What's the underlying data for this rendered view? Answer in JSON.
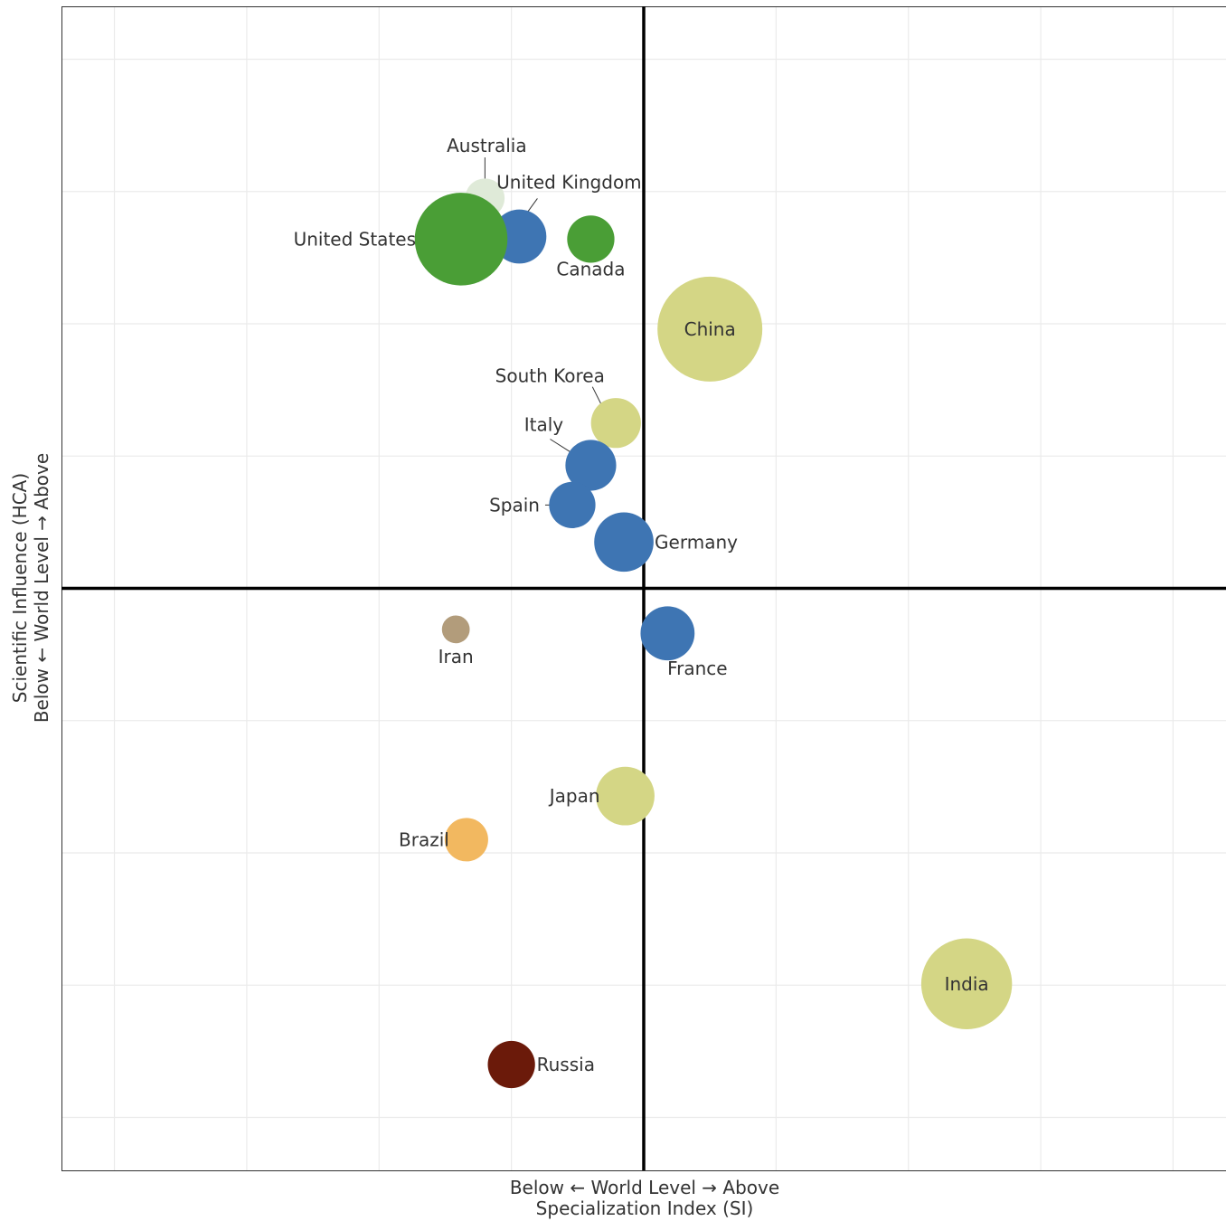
{
  "chart_data": {
    "type": "scatter",
    "subtype": "bubble",
    "xlabel": [
      "Below ← World Level → Above",
      "Specialization Index (SI)"
    ],
    "ylabel": [
      "Scientific Influence (HCA)",
      "Below ← World Level → Above"
    ],
    "xlim": [
      -4.4,
      4.4
    ],
    "ylim": [
      -4.4,
      4.4
    ],
    "grid": true,
    "tick_labels_shown": false,
    "reference_lines": {
      "x": 0,
      "y": 0
    },
    "points": [
      {
        "name": "Australia",
        "x": -1.2,
        "y": 2.95,
        "size": 0.18,
        "color": "#dfead8"
      },
      {
        "name": "United Kingdom",
        "x": -0.94,
        "y": 2.66,
        "size": 0.34,
        "color": "#3e75b3"
      },
      {
        "name": "United States",
        "x": -1.38,
        "y": 2.64,
        "size": 1.0,
        "color": "#4a9e36"
      },
      {
        "name": "Canada",
        "x": -0.4,
        "y": 2.64,
        "size": 0.26,
        "color": "#4a9e36"
      },
      {
        "name": "China",
        "x": 0.5,
        "y": 1.96,
        "size": 1.28,
        "color": "#d4d685"
      },
      {
        "name": "South Korea",
        "x": -0.21,
        "y": 1.25,
        "size": 0.29,
        "color": "#d4d685"
      },
      {
        "name": "Italy",
        "x": -0.4,
        "y": 0.93,
        "size": 0.3,
        "color": "#3e75b3"
      },
      {
        "name": "Spain",
        "x": -0.54,
        "y": 0.63,
        "size": 0.25,
        "color": "#3e75b3"
      },
      {
        "name": "Germany",
        "x": -0.15,
        "y": 0.35,
        "size": 0.41,
        "color": "#3e75b3"
      },
      {
        "name": "Iran",
        "x": -1.42,
        "y": -0.31,
        "size": 0.09,
        "color": "#b29c7b"
      },
      {
        "name": "France",
        "x": 0.18,
        "y": -0.34,
        "size": 0.34,
        "color": "#3e75b3"
      },
      {
        "name": "Japan",
        "x": -0.14,
        "y": -1.57,
        "size": 0.4,
        "color": "#d4d685"
      },
      {
        "name": "Brazil",
        "x": -1.34,
        "y": -1.9,
        "size": 0.22,
        "color": "#f2b860"
      },
      {
        "name": "India",
        "x": 2.44,
        "y": -2.99,
        "size": 0.96,
        "color": "#d4d685"
      },
      {
        "name": "Russia",
        "x": -1.0,
        "y": -3.6,
        "size": 0.26,
        "color": "#6b1a0a"
      }
    ]
  }
}
